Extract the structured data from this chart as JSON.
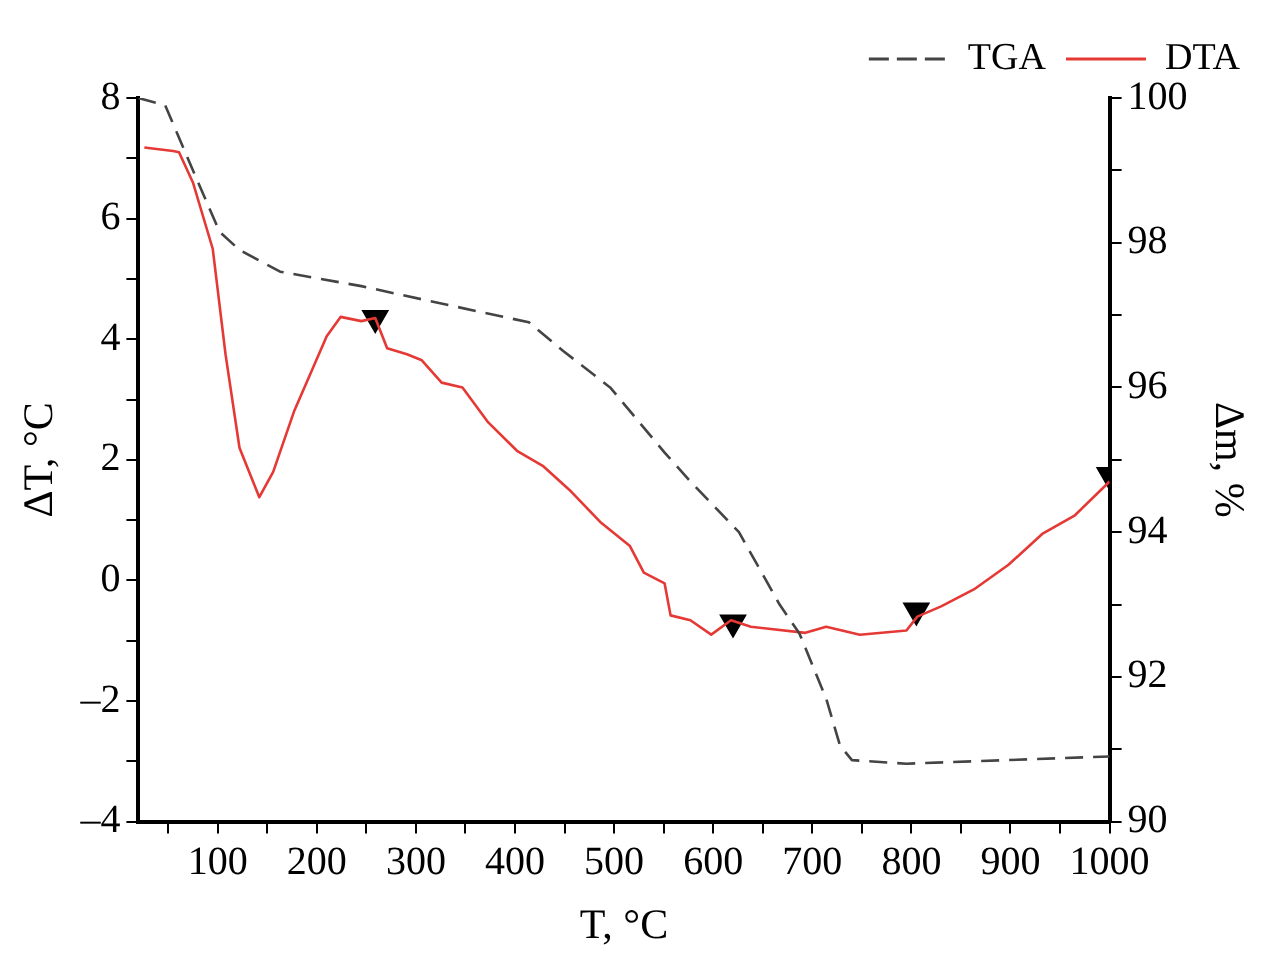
{
  "chart_data": {
    "type": "line",
    "xlabel": "T, °C",
    "ylabel": "ΔT, °C",
    "y2label": "Δm, %",
    "xlim": [
      20,
      1000
    ],
    "ylim": [
      -4,
      8
    ],
    "y2lim": [
      90,
      100
    ],
    "xticks": [
      {
        "value": 50,
        "label": null
      },
      100,
      {
        "value": 150,
        "label": null
      },
      200,
      {
        "value": 250,
        "label": null
      },
      300,
      {
        "value": 350,
        "label": null
      },
      400,
      {
        "value": 450,
        "label": null
      },
      500,
      {
        "value": 550,
        "label": null
      },
      600,
      {
        "value": 650,
        "label": null
      },
      700,
      {
        "value": 750,
        "label": null
      },
      800,
      {
        "value": 850,
        "label": null
      },
      900,
      {
        "value": 950,
        "label": null
      },
      1000
    ],
    "yticks": [
      {
        "value": -4,
        "label": "–4"
      },
      {
        "value": -3,
        "label": null
      },
      {
        "value": -2,
        "label": "–2"
      },
      {
        "value": -1,
        "label": null
      },
      0,
      {
        "value": 1,
        "label": null
      },
      2,
      {
        "value": 3,
        "label": null
      },
      4,
      {
        "value": 5,
        "label": null
      },
      6,
      {
        "value": 7,
        "label": null
      },
      8
    ],
    "y2ticks": [
      90,
      {
        "value": 91,
        "label": null
      },
      92,
      {
        "value": 93,
        "label": null
      },
      94,
      {
        "value": 95,
        "label": null
      },
      96,
      {
        "value": 97,
        "label": null
      },
      98,
      {
        "value": 99,
        "label": null
      },
      100
    ],
    "grid": false,
    "legend": "top right",
    "series": [
      {
        "name": "TGA",
        "color": "#444444",
        "axis": "y2",
        "line_style": "dashed",
        "marker": "none",
        "x": [
          20,
          47,
          75,
          102,
          122,
          163,
          245,
          312,
          414,
          449,
          496,
          551,
          577,
          626,
          667,
          687,
          714,
          728,
          740,
          795,
          1000
        ],
        "values": [
          100,
          99.9,
          99.0,
          98.15,
          97.9,
          97.6,
          97.4,
          97.2,
          96.9,
          96.5,
          96.0,
          95.1,
          94.7,
          94.0,
          93.0,
          92.6,
          91.7,
          91.05,
          90.85,
          90.8,
          90.9
        ]
      },
      {
        "name": "DTA",
        "color": "#e53935",
        "line_style": "solid",
        "marker": "none",
        "x": [
          26,
          55,
          61,
          75,
          95,
          108,
          122,
          142,
          156,
          177,
          210,
          224,
          245,
          259,
          271,
          291,
          306,
          326,
          347,
          373,
          402,
          428,
          455,
          486,
          516,
          530,
          551,
          557,
          577,
          598,
          618,
          638,
          693,
          714,
          748,
          795,
          806,
          830,
          863,
          898,
          932,
          965,
          1000
        ],
        "values": [
          7.18,
          7.12,
          7.1,
          6.6,
          5.5,
          3.74,
          2.2,
          1.38,
          1.8,
          2.8,
          4.05,
          4.37,
          4.3,
          4.35,
          3.85,
          3.75,
          3.65,
          3.28,
          3.2,
          2.62,
          2.15,
          1.9,
          1.5,
          0.97,
          0.57,
          0.13,
          -0.05,
          -0.58,
          -0.66,
          -0.9,
          -0.66,
          -0.77,
          -0.87,
          -0.77,
          -0.9,
          -0.83,
          -0.6,
          -0.43,
          -0.15,
          0.26,
          0.77,
          1.08,
          1.64
        ]
      },
      {
        "type": "scatter",
        "color": "#000000",
        "marker": "triangle",
        "x": [
          259,
          620,
          805,
          1000
        ],
        "values": [
          4.35,
          -0.7,
          -0.5,
          1.75
        ]
      }
    ]
  }
}
